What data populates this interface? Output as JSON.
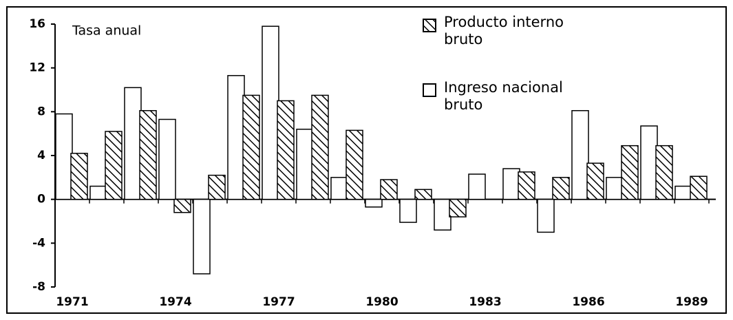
{
  "chart_data": {
    "type": "bar",
    "annotations": [
      "Tasa anual"
    ],
    "categories": [
      "1971",
      null,
      null,
      "1974",
      null,
      null,
      "1977",
      null,
      null,
      "1980",
      null,
      null,
      "1983",
      null,
      null,
      "1986",
      null,
      null,
      "1989"
    ],
    "series": [
      {
        "name": "Producto interno bruto",
        "color": "#000000",
        "pattern": "hatch",
        "values": [
          4.2,
          6.2,
          8.1,
          -1.2,
          2.2,
          9.5,
          9.0,
          9.5,
          6.3,
          1.8,
          0.9,
          -1.6,
          0,
          2.5,
          2.0,
          3.3,
          4.9,
          4.9,
          2.1
        ]
      },
      {
        "name": "Ingreso nacional bruto",
        "color": "#000000",
        "pattern": "none",
        "values": [
          7.8,
          1.2,
          10.2,
          7.3,
          -6.8,
          11.3,
          15.8,
          6.4,
          2.0,
          -0.7,
          -2.1,
          -2.8,
          2.3,
          2.8,
          -3.0,
          8.1,
          2.0,
          6.7,
          1.2
        ]
      }
    ],
    "ylim": [
      -8,
      16
    ],
    "yticks": [
      -8,
      -4,
      0,
      4,
      8,
      12,
      16
    ]
  }
}
